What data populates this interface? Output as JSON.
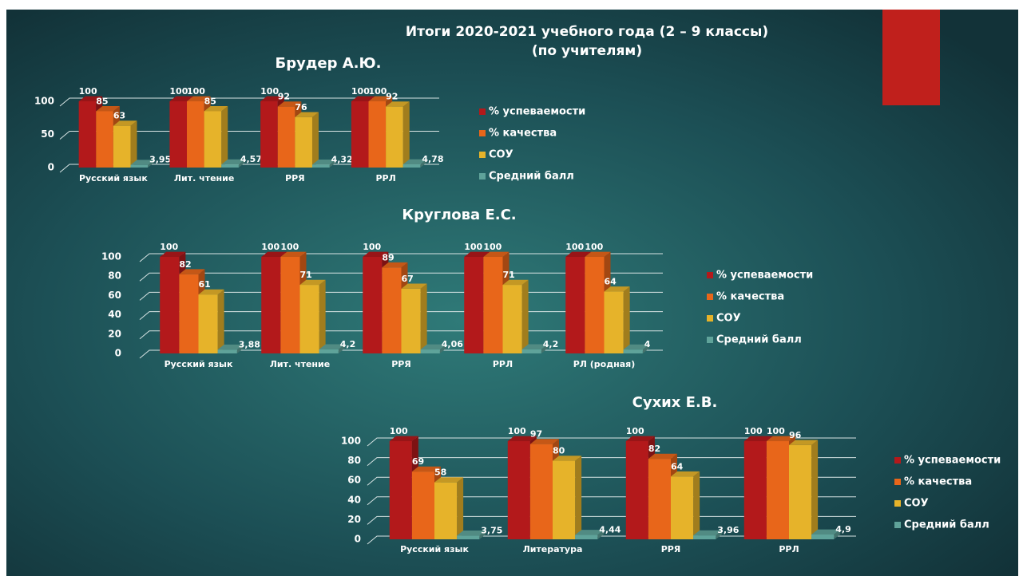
{
  "slide": {
    "title": "Итоги 2020-2021  учебного года (2 – 9 классы)",
    "subtitle": "(по учителям)"
  },
  "chart_data": [
    {
      "type": "bar3d",
      "title": "Брудер А.Ю.",
      "categories": [
        "Русский язык",
        "Лит. чтение",
        "РРЯ",
        "РРЛ"
      ],
      "ylim": [
        0,
        100
      ],
      "yticks": [
        0,
        50,
        100
      ],
      "grid": true,
      "series": [
        {
          "name": "% успеваемости",
          "color": "#b3191b",
          "values": [
            100,
            100,
            100,
            100
          ]
        },
        {
          "name": "% качества",
          "color": "#e8661a",
          "values": [
            85,
            100,
            92,
            100
          ]
        },
        {
          "name": "СОУ",
          "color": "#e6b32a",
          "values": [
            63,
            85,
            76,
            92
          ]
        },
        {
          "name": "Средний балл",
          "color": "#5fa39a",
          "values": [
            3.95,
            4.57,
            4.32,
            4.78
          ],
          "value_labels": [
            "3,95",
            "4,57",
            "4,32",
            "4,78"
          ]
        }
      ]
    },
    {
      "type": "bar3d",
      "title": "Круглова Е.С.",
      "categories": [
        "Русский язык",
        "Лит. чтение",
        "РРЯ",
        "РРЛ",
        "РЛ (родная)"
      ],
      "ylim": [
        0,
        100
      ],
      "yticks": [
        0,
        20,
        40,
        60,
        80,
        100
      ],
      "grid": true,
      "series": [
        {
          "name": "% успеваемости",
          "color": "#b3191b",
          "values": [
            100,
            100,
            100,
            100,
            100
          ]
        },
        {
          "name": "% качества",
          "color": "#e8661a",
          "values": [
            82,
            100,
            89,
            100,
            100
          ]
        },
        {
          "name": "СОУ",
          "color": "#e6b32a",
          "values": [
            61,
            71,
            67,
            71,
            64
          ]
        },
        {
          "name": "Средний балл",
          "color": "#5fa39a",
          "values": [
            3.88,
            4.2,
            4.06,
            4.2,
            4
          ],
          "value_labels": [
            "3,88",
            "4,2",
            "4,06",
            "4,2",
            "4"
          ]
        }
      ]
    },
    {
      "type": "bar3d",
      "title": "Сухих Е.В.",
      "categories": [
        "Русский язык",
        "Литература",
        "РРЯ",
        "РРЛ"
      ],
      "ylim": [
        0,
        100
      ],
      "yticks": [
        0,
        20,
        40,
        60,
        80,
        100
      ],
      "grid": true,
      "series": [
        {
          "name": "% успеваемости",
          "color": "#b3191b",
          "values": [
            100,
            100,
            100,
            100
          ]
        },
        {
          "name": "% качества",
          "color": "#e8661a",
          "values": [
            69,
            97,
            82,
            100
          ]
        },
        {
          "name": "СОУ",
          "color": "#e6b32a",
          "values": [
            58,
            80,
            64,
            96
          ]
        },
        {
          "name": "Средний балл",
          "color": "#5fa39a",
          "values": [
            3.75,
            4.44,
            3.96,
            4.9
          ],
          "value_labels": [
            "3,75",
            "4,44",
            "3,96",
            "4,9"
          ]
        }
      ]
    }
  ]
}
